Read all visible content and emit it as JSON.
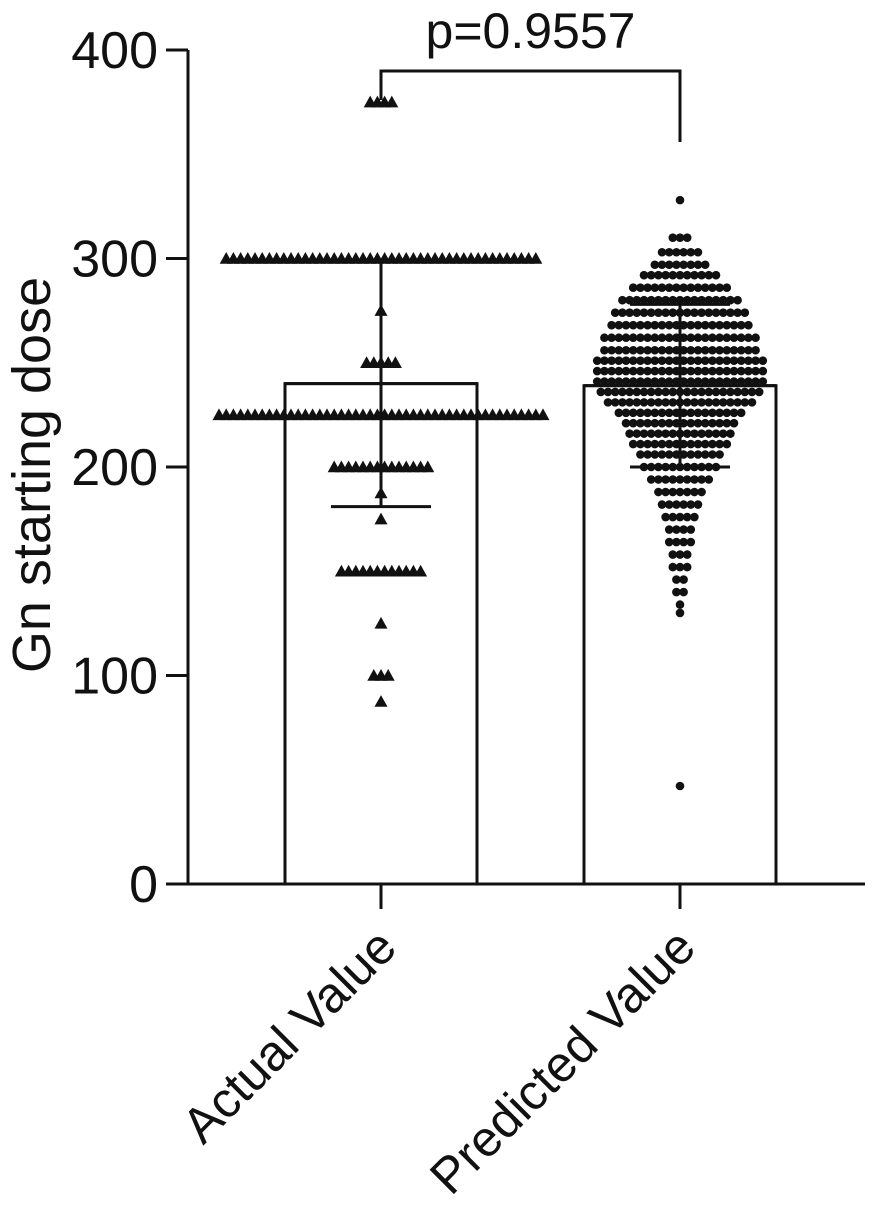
{
  "chart_data": {
    "type": "bar",
    "ylabel": "Gn starting dose",
    "ylim": [
      0,
      400
    ],
    "yticks": [
      "0",
      "100",
      "200",
      "300",
      "400"
    ],
    "categories": [
      "Actual Value",
      "Predicted Value"
    ],
    "means": [
      240,
      239
    ],
    "sd": [
      {
        "low": 181,
        "high": 299
      },
      {
        "low": 200,
        "high": 278
      }
    ],
    "annotation": "p=0.9557",
    "actual_points": [
      {
        "y": 375,
        "n": 4
      },
      {
        "y": 300,
        "n": 44
      },
      {
        "y": 275,
        "n": 1
      },
      {
        "y": 250,
        "n": 5
      },
      {
        "y": 225,
        "n": 46
      },
      {
        "y": 200,
        "n": 14
      },
      {
        "y": 187.5,
        "n": 1
      },
      {
        "y": 175,
        "n": 1
      },
      {
        "y": 150,
        "n": 12
      },
      {
        "y": 125,
        "n": 1
      },
      {
        "y": 100,
        "n": 3
      },
      {
        "y": 87.5,
        "n": 1
      }
    ],
    "predicted_points": [
      {
        "y": 328,
        "n": 1
      },
      {
        "y": 310,
        "n": 3
      },
      {
        "y": 303,
        "n": 6
      },
      {
        "y": 297,
        "n": 8
      },
      {
        "y": 292,
        "n": 11
      },
      {
        "y": 286,
        "n": 14
      },
      {
        "y": 280,
        "n": 17
      },
      {
        "y": 274,
        "n": 19
      },
      {
        "y": 268,
        "n": 20
      },
      {
        "y": 262,
        "n": 22
      },
      {
        "y": 256,
        "n": 22
      },
      {
        "y": 251,
        "n": 24
      },
      {
        "y": 246,
        "n": 24
      },
      {
        "y": 241,
        "n": 24
      },
      {
        "y": 236,
        "n": 23
      },
      {
        "y": 231,
        "n": 21
      },
      {
        "y": 226,
        "n": 18
      },
      {
        "y": 221,
        "n": 16
      },
      {
        "y": 216,
        "n": 15
      },
      {
        "y": 211,
        "n": 14
      },
      {
        "y": 206,
        "n": 12
      },
      {
        "y": 200,
        "n": 11
      },
      {
        "y": 194,
        "n": 9
      },
      {
        "y": 188,
        "n": 7
      },
      {
        "y": 182,
        "n": 6
      },
      {
        "y": 176,
        "n": 5
      },
      {
        "y": 170,
        "n": 4
      },
      {
        "y": 164,
        "n": 4
      },
      {
        "y": 158,
        "n": 3
      },
      {
        "y": 152,
        "n": 3
      },
      {
        "y": 146,
        "n": 2
      },
      {
        "y": 140,
        "n": 2
      },
      {
        "y": 134,
        "n": 1
      },
      {
        "y": 130,
        "n": 1
      },
      {
        "y": 47,
        "n": 1
      }
    ]
  }
}
